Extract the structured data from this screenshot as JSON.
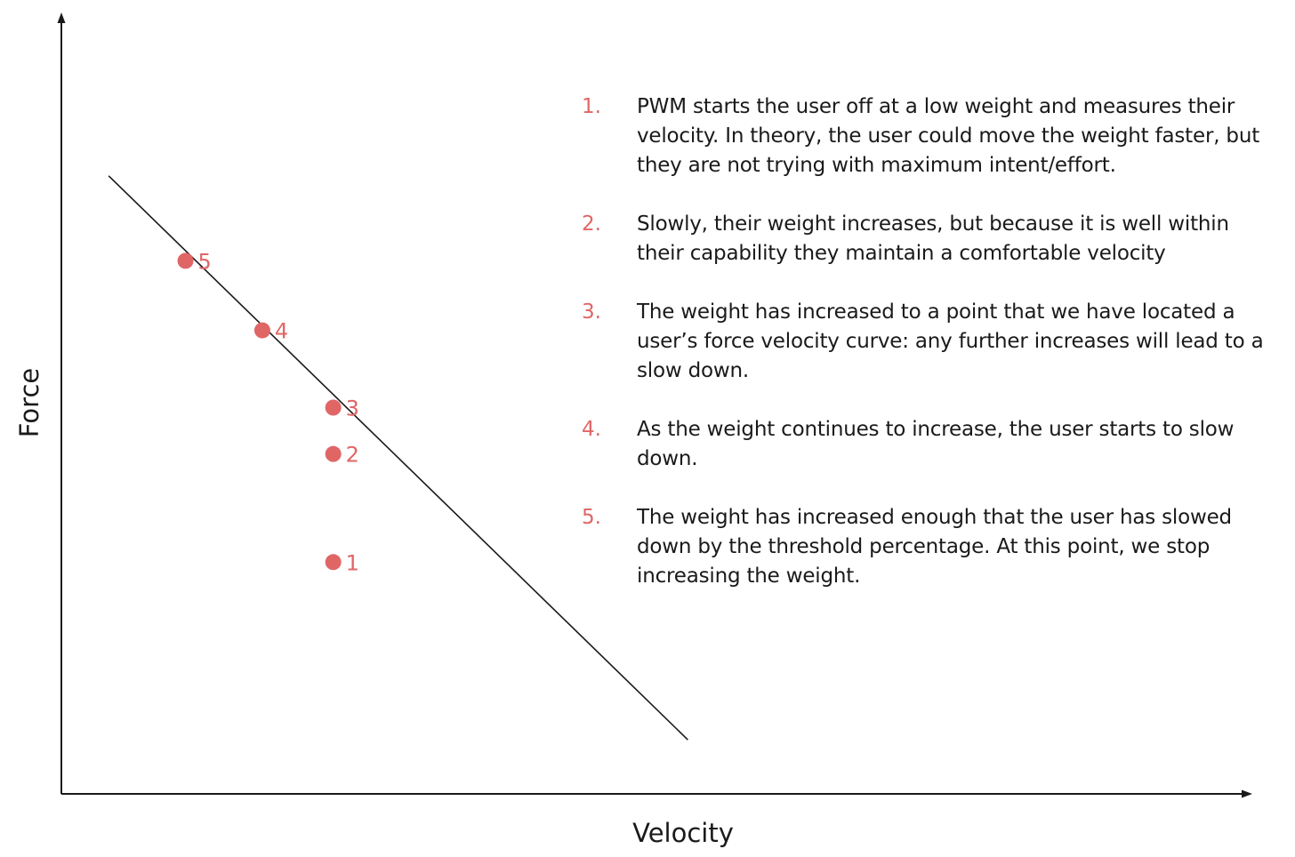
{
  "colors": {
    "accent": "#e06666",
    "ink": "#1a1a1a"
  },
  "chart_data": {
    "type": "scatter",
    "title": "",
    "xlabel": "Velocity",
    "ylabel": "Force",
    "xlim": [
      0,
      10
    ],
    "ylim": [
      0,
      10
    ],
    "grid": false,
    "legend": "none",
    "ticks": false,
    "points": [
      {
        "label": "1",
        "x": 2.3,
        "y": 3.0
      },
      {
        "label": "2",
        "x": 2.3,
        "y": 4.4
      },
      {
        "label": "3",
        "x": 2.3,
        "y": 5.0
      },
      {
        "label": "4",
        "x": 1.7,
        "y": 6.0
      },
      {
        "label": "5",
        "x": 1.05,
        "y": 6.9
      }
    ],
    "trend_line": {
      "from": {
        "x": 0.4,
        "y": 8.0
      },
      "to": {
        "x": 5.3,
        "y": 0.7
      }
    }
  },
  "notes": [
    {
      "num": "1.",
      "text": "PWM starts the user off at a low weight and measures their velocity. In theory, the user could move the weight faster, but they are not trying with maximum intent/effort."
    },
    {
      "num": "2.",
      "text": "Slowly, their weight increases, but because it is well within their capability they maintain a comfortable velocity"
    },
    {
      "num": "3.",
      "text": "The weight has increased to a point that we have located a user’s force velocity curve: any further increases will lead to a slow down."
    },
    {
      "num": "4.",
      "text": "As the weight continues to increase, the user starts to slow down."
    },
    {
      "num": "5.",
      "text": "The weight has increased enough that the user has slowed down by the threshold percentage. At this point, we stop increasing the weight."
    }
  ]
}
